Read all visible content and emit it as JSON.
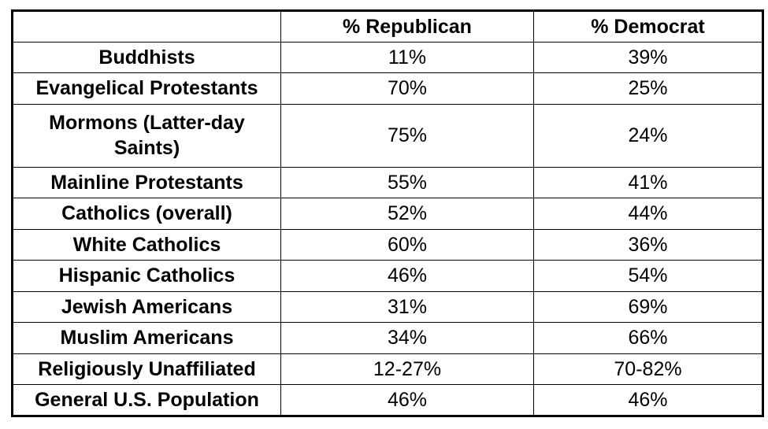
{
  "chart_data": {
    "type": "table",
    "title": "",
    "columns": [
      "",
      "% Republican",
      "% Democrat"
    ],
    "rows": [
      {
        "label": "Buddhists",
        "republican": "11%",
        "democrat": "39%"
      },
      {
        "label": "Evangelical Protestants",
        "republican": "70%",
        "democrat": "25%"
      },
      {
        "label": "Mormons (Latter-day Saints)",
        "republican": "75%",
        "democrat": "24%"
      },
      {
        "label": "Mainline Protestants",
        "republican": "55%",
        "democrat": "41%"
      },
      {
        "label": "Catholics (overall)",
        "republican": "52%",
        "democrat": "44%"
      },
      {
        "label": "White Catholics",
        "republican": "60%",
        "democrat": "36%"
      },
      {
        "label": "Hispanic Catholics",
        "republican": "46%",
        "democrat": "54%"
      },
      {
        "label": "Jewish Americans",
        "republican": "31%",
        "democrat": "69%"
      },
      {
        "label": "Muslim Americans",
        "republican": "34%",
        "democrat": "66%"
      },
      {
        "label": "Religiously Unaffiliated",
        "republican": "12-27%",
        "democrat": "70-82%"
      },
      {
        "label": "General U.S. Population",
        "republican": "46%",
        "democrat": "46%"
      }
    ]
  },
  "colors": {
    "border": "#000000",
    "background": "#ffffff",
    "text": "#000000"
  }
}
